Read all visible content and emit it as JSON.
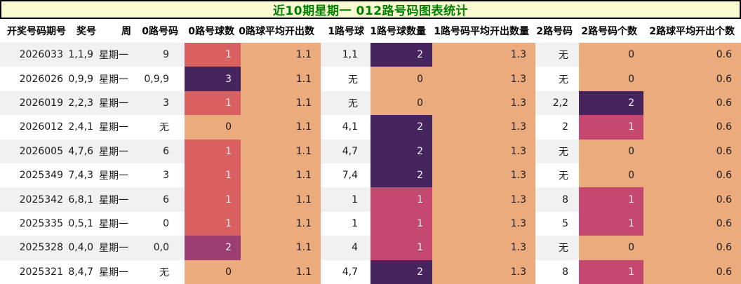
{
  "title": "近10期星期一 012路号码图表统计",
  "colors": {
    "title_text": "#008000",
    "title_bg": "#FAFAD2",
    "title_border": "#000000",
    "header_bg": "#FFFFFF",
    "row_even": "#FFFFFF",
    "row_odd": "#F1F1F2",
    "cell_text_dark": "#1a1a1a",
    "cell_text_light": "#F5F0F2"
  },
  "heatmap": {
    "band_orange": "#ECAB7C",
    "s3": {
      "0": "#ECAB7C",
      "1": "#D96061",
      "2": "#9C3D72",
      "3": "#46245E"
    },
    "s2": {
      "0": "#ECAB7C",
      "1": "#C44870",
      "2": "#46245E"
    }
  },
  "table": {
    "columns": [
      {
        "key": "period",
        "label": "开奖号码期号",
        "type": "plain"
      },
      {
        "key": "prize",
        "label": "奖号",
        "type": "plain"
      },
      {
        "key": "week",
        "label": "周",
        "type": "plain"
      },
      {
        "key": "r0_nums",
        "label": "0路号码",
        "type": "plain"
      },
      {
        "key": "r0_count",
        "label": "0路号球数",
        "type": "count",
        "scale": "s3"
      },
      {
        "key": "r0_avg",
        "label": "0路球平均开出数",
        "type": "avg"
      },
      {
        "key": "r1_nums",
        "label": "1路号球",
        "type": "plain"
      },
      {
        "key": "r1_count",
        "label": "1路号球数量",
        "type": "count",
        "scale": "s2"
      },
      {
        "key": "r1_avg",
        "label": "1路号码平均开出数量",
        "type": "avg"
      },
      {
        "key": "r2_nums",
        "label": "2路号码",
        "type": "plain"
      },
      {
        "key": "r2_count",
        "label": "2路号码个数",
        "type": "count",
        "scale": "s2"
      },
      {
        "key": "r2_avg",
        "label": "2路球平均开出个数",
        "type": "avg"
      }
    ],
    "rows": [
      {
        "period": "2026033",
        "prize": "1,1,9",
        "week": "星期一",
        "r0_nums": "9",
        "r0_count": "1",
        "r0_avg": "1.1",
        "r1_nums": "1,1",
        "r1_count": "2",
        "r1_avg": "1.3",
        "r2_nums": "无",
        "r2_count": "0",
        "r2_avg": "0.6"
      },
      {
        "period": "2026026",
        "prize": "0,9,9",
        "week": "星期一",
        "r0_nums": "0,9,9",
        "r0_count": "3",
        "r0_avg": "1.1",
        "r1_nums": "无",
        "r1_count": "0",
        "r1_avg": "1.3",
        "r2_nums": "无",
        "r2_count": "0",
        "r2_avg": "0.6"
      },
      {
        "period": "2026019",
        "prize": "2,2,3",
        "week": "星期一",
        "r0_nums": "3",
        "r0_count": "1",
        "r0_avg": "1.1",
        "r1_nums": "无",
        "r1_count": "0",
        "r1_avg": "1.3",
        "r2_nums": "2,2",
        "r2_count": "2",
        "r2_avg": "0.6"
      },
      {
        "period": "2026012",
        "prize": "2,4,1",
        "week": "星期一",
        "r0_nums": "无",
        "r0_count": "0",
        "r0_avg": "1.1",
        "r1_nums": "4,1",
        "r1_count": "2",
        "r1_avg": "1.3",
        "r2_nums": "2",
        "r2_count": "1",
        "r2_avg": "0.6"
      },
      {
        "period": "2026005",
        "prize": "4,7,6",
        "week": "星期一",
        "r0_nums": "6",
        "r0_count": "1",
        "r0_avg": "1.1",
        "r1_nums": "4,7",
        "r1_count": "2",
        "r1_avg": "1.3",
        "r2_nums": "无",
        "r2_count": "0",
        "r2_avg": "0.6"
      },
      {
        "period": "2025349",
        "prize": "7,4,3",
        "week": "星期一",
        "r0_nums": "3",
        "r0_count": "1",
        "r0_avg": "1.1",
        "r1_nums": "7,4",
        "r1_count": "2",
        "r1_avg": "1.3",
        "r2_nums": "无",
        "r2_count": "0",
        "r2_avg": "0.6"
      },
      {
        "period": "2025342",
        "prize": "6,8,1",
        "week": "星期一",
        "r0_nums": "6",
        "r0_count": "1",
        "r0_avg": "1.1",
        "r1_nums": "1",
        "r1_count": "1",
        "r1_avg": "1.3",
        "r2_nums": "8",
        "r2_count": "1",
        "r2_avg": "0.6"
      },
      {
        "period": "2025335",
        "prize": "0,5,1",
        "week": "星期一",
        "r0_nums": "0",
        "r0_count": "1",
        "r0_avg": "1.1",
        "r1_nums": "1",
        "r1_count": "1",
        "r1_avg": "1.3",
        "r2_nums": "5",
        "r2_count": "1",
        "r2_avg": "0.6"
      },
      {
        "period": "2025328",
        "prize": "0,4,0",
        "week": "星期一",
        "r0_nums": "0,0",
        "r0_count": "2",
        "r0_avg": "1.1",
        "r1_nums": "4",
        "r1_count": "1",
        "r1_avg": "1.3",
        "r2_nums": "无",
        "r2_count": "0",
        "r2_avg": "0.6"
      },
      {
        "period": "2025321",
        "prize": "8,4,7",
        "week": "星期一",
        "r0_nums": "无",
        "r0_count": "0",
        "r0_avg": "1.1",
        "r1_nums": "4,7",
        "r1_count": "2",
        "r1_avg": "1.3",
        "r2_nums": "8",
        "r2_count": "1",
        "r2_avg": "0.6"
      }
    ]
  }
}
